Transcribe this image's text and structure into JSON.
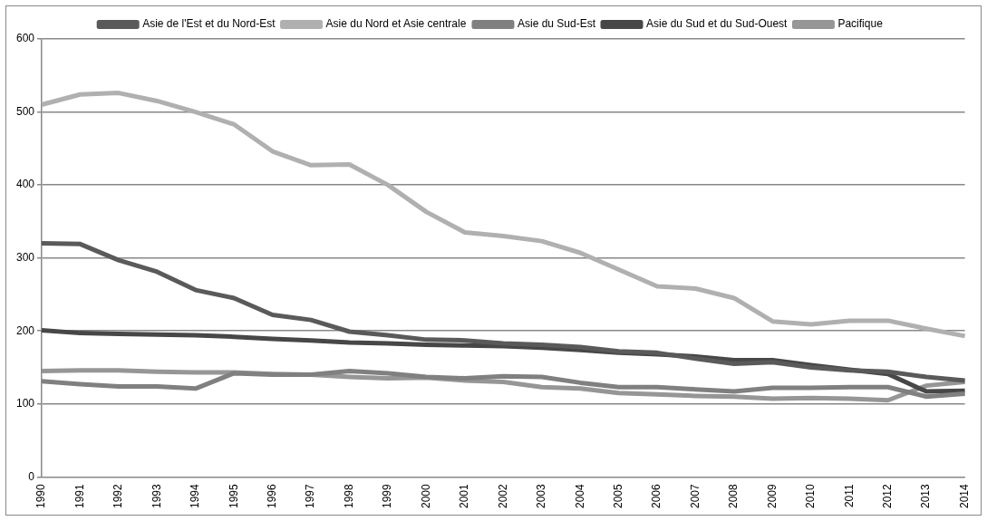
{
  "chart_data": {
    "type": "line",
    "categories": [
      "1990",
      "1991",
      "1992",
      "1993",
      "1994",
      "1995",
      "1996",
      "1997",
      "1998",
      "1999",
      "2000",
      "2001",
      "2002",
      "2003",
      "2004",
      "2005",
      "2006",
      "2007",
      "2008",
      "2009",
      "2010",
      "2011",
      "2012",
      "2013",
      "2014"
    ],
    "series": [
      {
        "name": "Asie de l'Est et du Nord-Est",
        "color": "#5a5a5a",
        "values": [
          320,
          319,
          297,
          281,
          256,
          245,
          222,
          215,
          199,
          194,
          188,
          187,
          183,
          181,
          178,
          172,
          170,
          162,
          155,
          157,
          150,
          146,
          144,
          137,
          132
        ]
      },
      {
        "name": "Asie du Nord et Asie centrale",
        "color": "#b0b0b0",
        "values": [
          510,
          524,
          526,
          515,
          500,
          483,
          446,
          427,
          428,
          400,
          363,
          335,
          330,
          323,
          307,
          284,
          261,
          258,
          245,
          213,
          209,
          214,
          214,
          203,
          193
        ]
      },
      {
        "name": "Asie du Sud-Est",
        "color": "#808080",
        "values": [
          131,
          127,
          124,
          124,
          121,
          142,
          140,
          140,
          145,
          142,
          137,
          135,
          138,
          137,
          129,
          123,
          123,
          120,
          117,
          122,
          122,
          123,
          123,
          110,
          114
        ]
      },
      {
        "name": "Asie du Sud et du Sud-Ouest",
        "color": "#474747",
        "values": [
          201,
          197,
          196,
          195,
          194,
          192,
          189,
          187,
          184,
          183,
          181,
          180,
          179,
          177,
          174,
          170,
          168,
          165,
          160,
          160,
          153,
          147,
          141,
          117,
          118
        ]
      },
      {
        "name": "Pacifique",
        "color": "#969696",
        "values": [
          145,
          146,
          146,
          144,
          143,
          143,
          141,
          140,
          137,
          135,
          136,
          132,
          130,
          123,
          121,
          115,
          113,
          111,
          110,
          107,
          108,
          107,
          105,
          125,
          130
        ]
      }
    ],
    "ylim": [
      0,
      600
    ],
    "yticks": [
      0,
      100,
      200,
      300,
      400,
      500,
      600
    ],
    "grid": "y",
    "legend": "top",
    "marker": "none",
    "line_style": "solid"
  }
}
